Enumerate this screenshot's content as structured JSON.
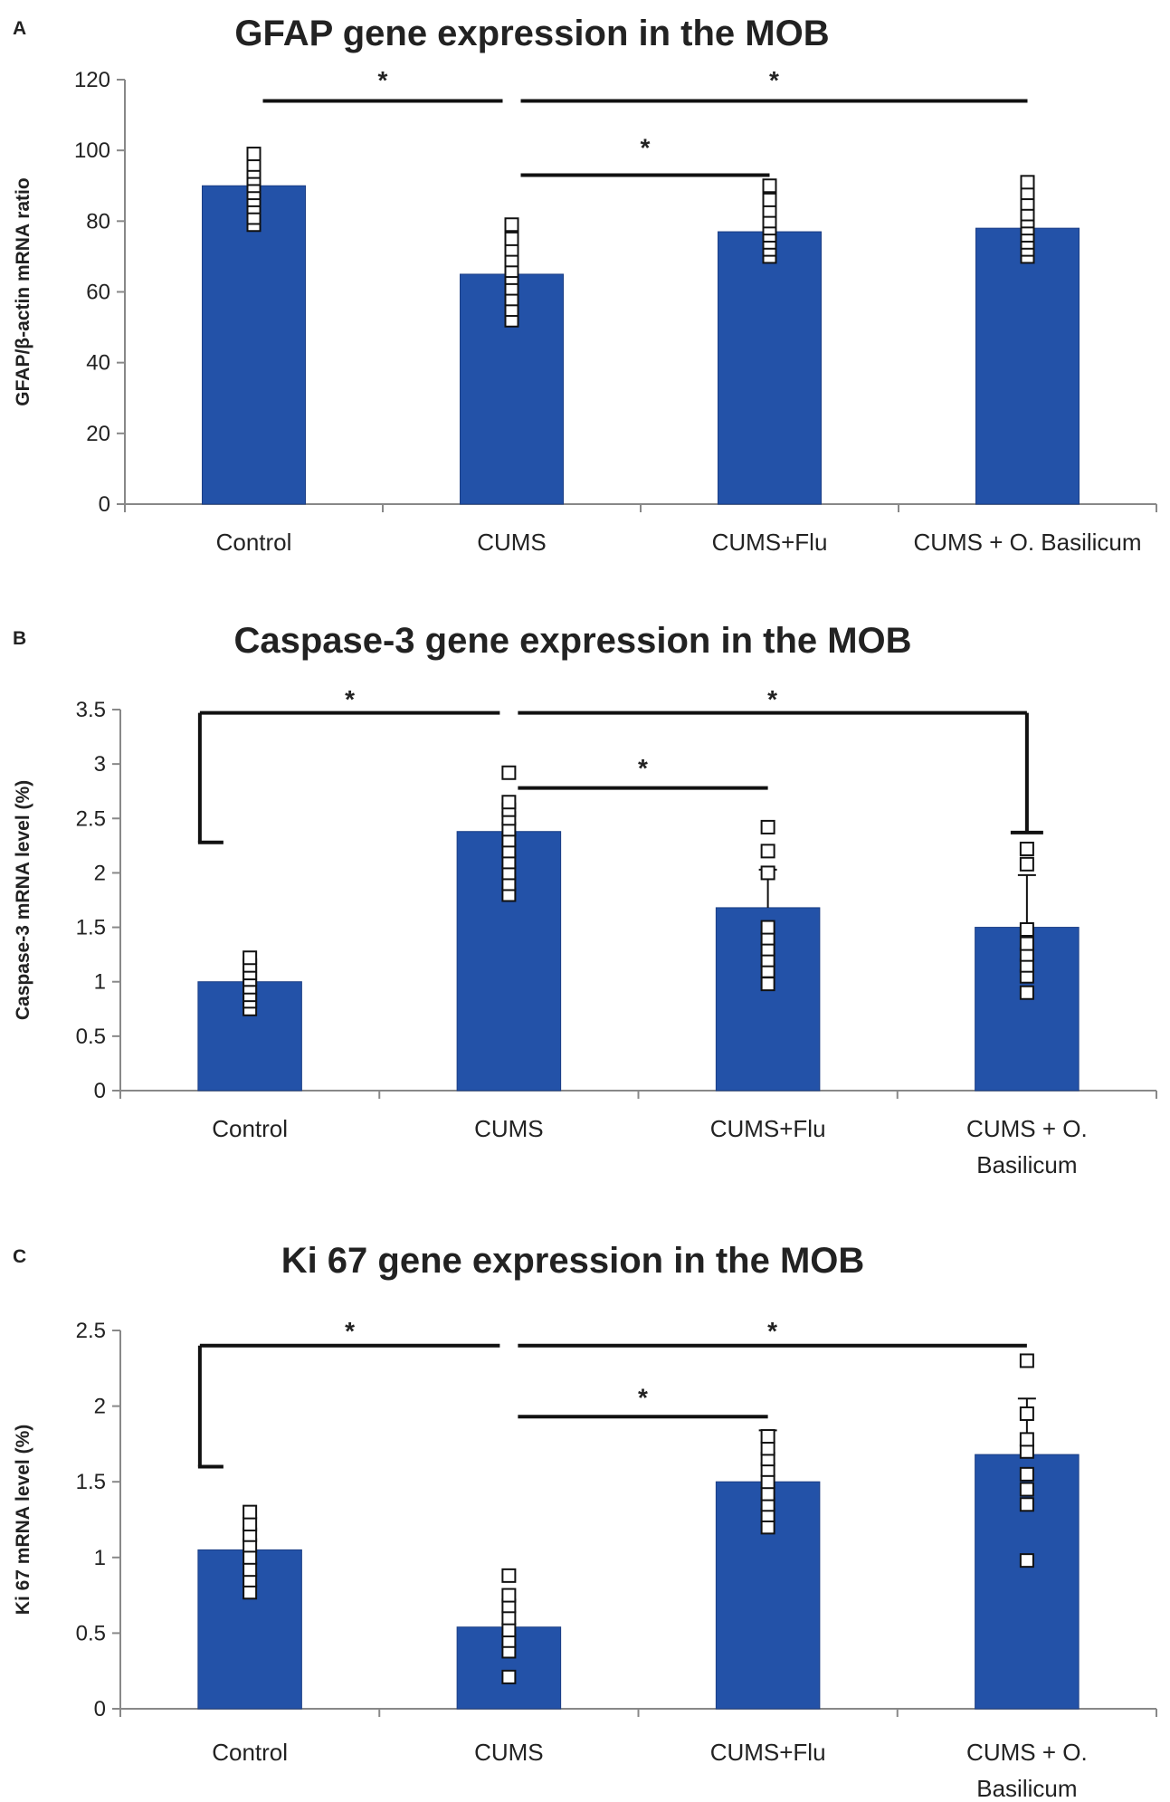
{
  "chart_data": [
    {
      "panel": "A",
      "type": "bar",
      "title": "GFAP gene expression in the MOB",
      "ylabel": "GFAP/β-actin mRNA ratio",
      "xlabel": "",
      "ylim": [
        0,
        120
      ],
      "yticks": [
        "0",
        "20",
        "40",
        "60",
        "80",
        "100",
        "120"
      ],
      "categories": [
        [
          "Control"
        ],
        [
          "CUMS"
        ],
        [
          "CUMS+Flu"
        ],
        [
          "CUMS + O. Basilicum"
        ]
      ],
      "values": [
        90,
        65,
        77,
        78
      ],
      "error_upper": [
        null,
        null,
        null,
        null
      ],
      "points": [
        [
          79,
          81,
          84,
          86,
          88,
          90,
          92,
          94,
          96,
          99
        ],
        [
          52,
          55,
          58,
          61,
          64,
          66,
          69,
          72,
          75,
          79
        ],
        [
          70,
          72,
          74,
          76,
          78,
          80,
          83,
          86,
          90
        ],
        [
          70,
          72,
          74,
          76,
          78,
          80,
          82,
          85,
          88,
          91
        ]
      ],
      "significance": [
        {
          "from": 0,
          "to": 1,
          "label": "*",
          "y": 114,
          "drop_from": null,
          "drop_to": null,
          "star_y": 120
        },
        {
          "from": 1,
          "to": 3,
          "label": "*",
          "y": 114,
          "drop_from": null,
          "drop_to": null,
          "star_y": 120
        },
        {
          "from": 1,
          "to": 2,
          "label": "*",
          "y": 93,
          "drop_from": null,
          "drop_to": null,
          "star_y": 101
        }
      ]
    },
    {
      "panel": "B",
      "type": "bar",
      "title": "Caspase-3 gene expression in the MOB",
      "ylabel": "Caspase-3 mRNA level (%)",
      "xlabel": "",
      "ylim": [
        0,
        3.5
      ],
      "yticks": [
        "0",
        "0.5",
        "1",
        "1.5",
        "2",
        "2.5",
        "3",
        "3.5"
      ],
      "categories": [
        [
          "Control"
        ],
        [
          "CUMS"
        ],
        [
          "CUMS+Flu"
        ],
        [
          "CUMS + O.",
          "Basilicum"
        ]
      ],
      "values": [
        1.0,
        2.38,
        1.68,
        1.5
      ],
      "error_upper": [
        null,
        null,
        2.03,
        1.98
      ],
      "points": [
        [
          0.75,
          0.82,
          0.88,
          0.95,
          1.02,
          1.08,
          1.15,
          1.22
        ],
        [
          1.8,
          1.9,
          2.0,
          2.1,
          2.2,
          2.3,
          2.4,
          2.5,
          2.58,
          2.65,
          2.92
        ],
        [
          0.98,
          1.1,
          1.2,
          1.3,
          1.4,
          1.5,
          2.0,
          2.2,
          2.42
        ],
        [
          0.9,
          1.05,
          1.15,
          1.25,
          1.35,
          1.48,
          2.08,
          2.22
        ]
      ],
      "significance": [
        {
          "from": 0,
          "to": 1,
          "label": "*",
          "y": 3.47,
          "drop_from": 2.28,
          "drop_to": null,
          "star_y": 3.6
        },
        {
          "from": 1,
          "to": 3,
          "label": "*",
          "y": 3.47,
          "drop_from": null,
          "drop_to": 2.37,
          "star_y": 3.6
        },
        {
          "from": 1,
          "to": 2,
          "label": "*",
          "y": 2.78,
          "drop_from": null,
          "drop_to": null,
          "star_y": 2.97
        }
      ]
    },
    {
      "panel": "C",
      "type": "bar",
      "title": "Ki 67 gene expression in the MOB",
      "ylabel": "Ki 67 mRNA level (%)",
      "xlabel": "",
      "ylim": [
        0,
        2.5
      ],
      "yticks": [
        "0",
        "0.5",
        "1",
        "1.5",
        "2",
        "2.5"
      ],
      "categories": [
        [
          "Control"
        ],
        [
          "CUMS"
        ],
        [
          "CUMS+Flu"
        ],
        [
          "CUMS + O.",
          "Basilicum"
        ]
      ],
      "values": [
        1.05,
        0.54,
        1.5,
        1.68
      ],
      "error_upper": [
        null,
        null,
        1.84,
        2.05
      ],
      "points": [
        [
          0.77,
          0.85,
          0.92,
          1.0,
          1.08,
          1.15,
          1.22,
          1.3
        ],
        [
          0.21,
          0.38,
          0.45,
          0.52,
          0.6,
          0.68,
          0.75,
          0.88
        ],
        [
          1.2,
          1.28,
          1.35,
          1.42,
          1.5,
          1.58,
          1.65,
          1.72,
          1.8
        ],
        [
          0.98,
          1.35,
          1.45,
          1.55,
          1.7,
          1.78,
          1.95,
          2.3
        ]
      ],
      "significance": [
        {
          "from": 0,
          "to": 1,
          "label": "*",
          "y": 2.4,
          "drop_from": 1.6,
          "drop_to": null,
          "star_y": 2.5
        },
        {
          "from": 1,
          "to": 3,
          "label": "*",
          "y": 2.4,
          "drop_from": null,
          "drop_to": null,
          "star_y": 2.5
        },
        {
          "from": 1,
          "to": 2,
          "label": "*",
          "y": 1.93,
          "drop_from": null,
          "drop_to": null,
          "star_y": 2.06
        }
      ]
    }
  ],
  "style": {
    "bar_color": "#2352a8",
    "bar_edge": "#1b3e85",
    "axis_color": "#888888",
    "line_color": "#111111",
    "marker_fill": "#ffffff",
    "marker_edge": "#111111"
  }
}
